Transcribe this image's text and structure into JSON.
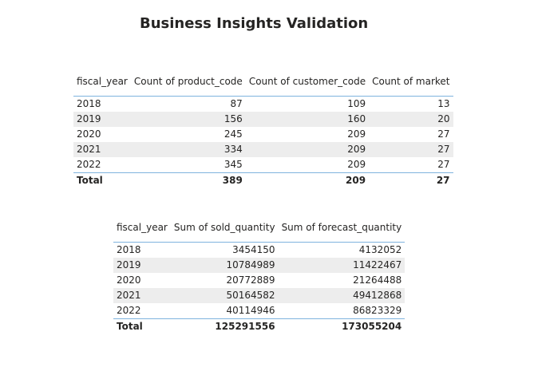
{
  "page": {
    "title": "Business Insights Validation"
  },
  "table1": {
    "headers": [
      "fiscal_year",
      "Count of product_code",
      "Count of customer_code",
      "Count of market"
    ],
    "rows": [
      [
        "2018",
        "87",
        "109",
        "13"
      ],
      [
        "2019",
        "156",
        "160",
        "20"
      ],
      [
        "2020",
        "245",
        "209",
        "27"
      ],
      [
        "2021",
        "334",
        "209",
        "27"
      ],
      [
        "2022",
        "345",
        "209",
        "27"
      ]
    ],
    "total": [
      "Total",
      "389",
      "209",
      "27"
    ]
  },
  "table2": {
    "headers": [
      "fiscal_year",
      "Sum of sold_quantity",
      "Sum of forecast_quantity"
    ],
    "rows": [
      [
        "2018",
        "3454150",
        "4132052"
      ],
      [
        "2019",
        "10784989",
        "11422467"
      ],
      [
        "2020",
        "20772889",
        "21264488"
      ],
      [
        "2021",
        "50164582",
        "49412868"
      ],
      [
        "2022",
        "40114946",
        "86823329"
      ]
    ],
    "total": [
      "Total",
      "125291556",
      "173055204"
    ]
  },
  "colors": {
    "header_rule": "#7fb3de",
    "alt_row": "#ededed",
    "text": "#252423"
  }
}
